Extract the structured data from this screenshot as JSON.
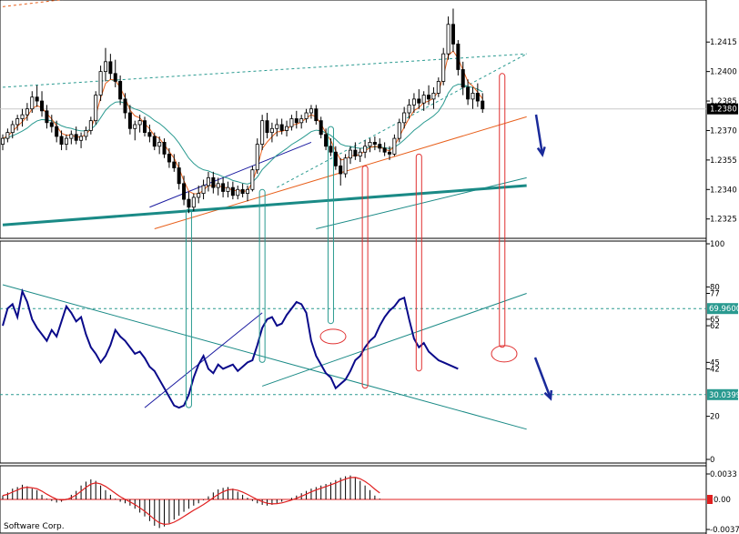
{
  "footer": {
    "text": "Software Corp."
  },
  "chart_data": [
    {
      "type": "candlestick",
      "panel": "price",
      "ylim": [
        1.2317,
        1.2435
      ],
      "yticks": [
        "1.2415",
        "1.2400",
        "1.2385",
        "1.2370",
        "1.2355",
        "1.2340",
        "1.2325"
      ],
      "current_value_label": "1.2380",
      "colors": {
        "candle": "#000000",
        "ma_fast": "#e8601c",
        "ma_slow": "#2a9a90",
        "trend_blue": "#1a1aa0",
        "trend_red": "#e8601c",
        "trend_teal": "#1a8a86"
      },
      "candles": [
        [
          1.2363,
          1.2368,
          1.236,
          1.2366
        ],
        [
          1.2366,
          1.2371,
          1.2364,
          1.2369
        ],
        [
          1.2369,
          1.2375,
          1.2366,
          1.2373
        ],
        [
          1.2373,
          1.2378,
          1.237,
          1.2376
        ],
        [
          1.2376,
          1.2381,
          1.2372,
          1.2378
        ],
        [
          1.2378,
          1.2384,
          1.2375,
          1.2381
        ],
        [
          1.2381,
          1.239,
          1.2379,
          1.2387
        ],
        [
          1.2387,
          1.2393,
          1.2382,
          1.2385
        ],
        [
          1.2385,
          1.239,
          1.2377,
          1.238
        ],
        [
          1.238,
          1.2383,
          1.2371,
          1.2374
        ],
        [
          1.2374,
          1.2378,
          1.2369,
          1.2372
        ],
        [
          1.2372,
          1.2375,
          1.2364,
          1.2367
        ],
        [
          1.2367,
          1.237,
          1.236,
          1.2363
        ],
        [
          1.2363,
          1.2368,
          1.236,
          1.2366
        ],
        [
          1.2366,
          1.237,
          1.2363,
          1.2368
        ],
        [
          1.2368,
          1.2372,
          1.2363,
          1.2365
        ],
        [
          1.2365,
          1.2369,
          1.2361,
          1.2367
        ],
        [
          1.2367,
          1.2372,
          1.2365,
          1.237
        ],
        [
          1.237,
          1.2377,
          1.2368,
          1.2375
        ],
        [
          1.2375,
          1.239,
          1.2373,
          1.2388
        ],
        [
          1.2388,
          1.2403,
          1.2385,
          1.24
        ],
        [
          1.24,
          1.2412,
          1.2395,
          1.2405
        ],
        [
          1.2405,
          1.2409,
          1.2396,
          1.2399
        ],
        [
          1.2399,
          1.2406,
          1.2392,
          1.2395
        ],
        [
          1.2395,
          1.2398,
          1.2383,
          1.2386
        ],
        [
          1.2386,
          1.2389,
          1.2376,
          1.2379
        ],
        [
          1.2379,
          1.2383,
          1.2368,
          1.2371
        ],
        [
          1.2371,
          1.2375,
          1.2365,
          1.2373
        ],
        [
          1.2373,
          1.2378,
          1.2369,
          1.2375
        ],
        [
          1.2375,
          1.2377,
          1.2367,
          1.2369
        ],
        [
          1.2369,
          1.2373,
          1.2364,
          1.2367
        ],
        [
          1.2367,
          1.2369,
          1.236,
          1.2362
        ],
        [
          1.2362,
          1.2367,
          1.2358,
          1.2364
        ],
        [
          1.2364,
          1.2366,
          1.2356,
          1.2358
        ],
        [
          1.2358,
          1.2361,
          1.2351,
          1.2354
        ],
        [
          1.2354,
          1.2358,
          1.2349,
          1.2351
        ],
        [
          1.2351,
          1.2354,
          1.234,
          1.2343
        ],
        [
          1.2343,
          1.2347,
          1.2332,
          1.2335
        ],
        [
          1.2335,
          1.2339,
          1.2328,
          1.2331
        ],
        [
          1.2331,
          1.2338,
          1.2329,
          1.2336
        ],
        [
          1.2336,
          1.2342,
          1.2333,
          1.2338
        ],
        [
          1.2338,
          1.2345,
          1.2335,
          1.2342
        ],
        [
          1.2342,
          1.2349,
          1.2339,
          1.2346
        ],
        [
          1.2346,
          1.2349,
          1.2338,
          1.2341
        ],
        [
          1.2341,
          1.2346,
          1.2337,
          1.2343
        ],
        [
          1.2343,
          1.2346,
          1.2336,
          1.2339
        ],
        [
          1.2339,
          1.2344,
          1.2336,
          1.2341
        ],
        [
          1.2341,
          1.2344,
          1.2335,
          1.2337
        ],
        [
          1.2337,
          1.2342,
          1.2335,
          1.234
        ],
        [
          1.234,
          1.2343,
          1.2336,
          1.2338
        ],
        [
          1.2338,
          1.2342,
          1.2334,
          1.234
        ],
        [
          1.234,
          1.2352,
          1.2339,
          1.235
        ],
        [
          1.235,
          1.2366,
          1.2348,
          1.2363
        ],
        [
          1.2363,
          1.2378,
          1.236,
          1.2375
        ],
        [
          1.2375,
          1.2379,
          1.2366,
          1.2369
        ],
        [
          1.2369,
          1.2374,
          1.2364,
          1.2371
        ],
        [
          1.2371,
          1.2376,
          1.2367,
          1.2373
        ],
        [
          1.2373,
          1.2376,
          1.2368,
          1.237
        ],
        [
          1.237,
          1.2375,
          1.2367,
          1.2372
        ],
        [
          1.2372,
          1.2378,
          1.237,
          1.2376
        ],
        [
          1.2376,
          1.238,
          1.2371,
          1.2374
        ],
        [
          1.2374,
          1.2378,
          1.2371,
          1.2376
        ],
        [
          1.2376,
          1.2381,
          1.2374,
          1.2379
        ],
        [
          1.2379,
          1.2383,
          1.2376,
          1.2381
        ],
        [
          1.2381,
          1.2383,
          1.2373,
          1.2375
        ],
        [
          1.2375,
          1.2377,
          1.2366,
          1.2368
        ],
        [
          1.2368,
          1.2371,
          1.236,
          1.2362
        ],
        [
          1.2362,
          1.2366,
          1.2357,
          1.2359
        ],
        [
          1.2359,
          1.2362,
          1.235,
          1.2352
        ],
        [
          1.2352,
          1.2356,
          1.2342,
          1.2348
        ],
        [
          1.2348,
          1.2358,
          1.2346,
          1.2356
        ],
        [
          1.2356,
          1.2362,
          1.2353,
          1.236
        ],
        [
          1.236,
          1.2364,
          1.2355,
          1.2357
        ],
        [
          1.2357,
          1.2361,
          1.2354,
          1.2359
        ],
        [
          1.2359,
          1.2365,
          1.2356,
          1.2362
        ],
        [
          1.2362,
          1.2366,
          1.2359,
          1.2364
        ],
        [
          1.2364,
          1.2367,
          1.236,
          1.2363
        ],
        [
          1.2363,
          1.2366,
          1.2359,
          1.2361
        ],
        [
          1.2361,
          1.2364,
          1.2357,
          1.2359
        ],
        [
          1.2359,
          1.2362,
          1.2355,
          1.2358
        ],
        [
          1.2358,
          1.2368,
          1.2357,
          1.2366
        ],
        [
          1.2366,
          1.2376,
          1.2364,
          1.2374
        ],
        [
          1.2374,
          1.2382,
          1.2371,
          1.2379
        ],
        [
          1.2379,
          1.2386,
          1.2376,
          1.2383
        ],
        [
          1.2383,
          1.2389,
          1.2379,
          1.2386
        ],
        [
          1.2386,
          1.2391,
          1.2381,
          1.2384
        ],
        [
          1.2384,
          1.239,
          1.238,
          1.2388
        ],
        [
          1.2388,
          1.2393,
          1.2383,
          1.2386
        ],
        [
          1.2386,
          1.2392,
          1.2381,
          1.2389
        ],
        [
          1.2389,
          1.2397,
          1.2387,
          1.2395
        ],
        [
          1.2395,
          1.2412,
          1.2393,
          1.2409
        ],
        [
          1.2409,
          1.2428,
          1.2406,
          1.2424
        ],
        [
          1.2424,
          1.2432,
          1.241,
          1.2414
        ],
        [
          1.2414,
          1.2416,
          1.2398,
          1.2401
        ],
        [
          1.2401,
          1.2405,
          1.2388,
          1.2392
        ],
        [
          1.2392,
          1.2396,
          1.2383,
          1.2386
        ],
        [
          1.2386,
          1.2392,
          1.2381,
          1.2389
        ],
        [
          1.2389,
          1.2394,
          1.2382,
          1.2385
        ],
        [
          1.2385,
          1.2389,
          1.2379,
          1.2381
        ]
      ],
      "overlay_lines": [
        {
          "name": "upper-dashed-red",
          "p1": [
            0,
            1.2433
          ],
          "p2": [
            65,
            1.2452
          ],
          "color": "#e8601c",
          "dash": true
        },
        {
          "name": "upper-dashed-teal",
          "p1": [
            0,
            1.2392
          ],
          "p2": [
            107,
            1.2409
          ],
          "color": "#2a9a90",
          "dash": true
        },
        {
          "name": "rising-dashed-teal",
          "p1": [
            56,
            1.2341
          ],
          "p2": [
            107,
            1.2409
          ],
          "color": "#2a9a90",
          "dash": true
        },
        {
          "name": "blue-support",
          "p1": [
            30,
            1.2331
          ],
          "p2": [
            63,
            1.2364
          ],
          "color": "#1a1aa0",
          "dash": false
        },
        {
          "name": "red-support",
          "p1": [
            31,
            1.232
          ],
          "p2": [
            107,
            1.2377
          ],
          "color": "#e8601c",
          "dash": false
        },
        {
          "name": "teal-thick",
          "p1": [
            0,
            1.2322
          ],
          "p2": [
            107,
            1.2342
          ],
          "color": "#1a8a86",
          "dash": false,
          "width": 3
        },
        {
          "name": "teal-thin",
          "p1": [
            64,
            1.232
          ],
          "p2": [
            107,
            1.2346
          ],
          "color": "#1a8a86",
          "dash": false
        }
      ]
    },
    {
      "type": "line",
      "panel": "oscillator",
      "ylim": [
        0,
        100
      ],
      "yticks": [
        "100",
        "80",
        "77",
        "69.9600",
        "65",
        "62",
        "45",
        "42",
        "30.0399",
        "20",
        "0"
      ],
      "levels": [
        69.96,
        30.04
      ],
      "series": [
        {
          "values": [
            62,
            70,
            72,
            66,
            78,
            73,
            65,
            61,
            58,
            55,
            60,
            57,
            64,
            71,
            68,
            64,
            66,
            58,
            52,
            49,
            45,
            48,
            53,
            60,
            57,
            55,
            52,
            49,
            50,
            47,
            43,
            41,
            37,
            33,
            29,
            25,
            24,
            25,
            30,
            38,
            44,
            48,
            42,
            40,
            44,
            42,
            43,
            44,
            41,
            43,
            45,
            46,
            53,
            61,
            65,
            66,
            62,
            63,
            67,
            70,
            73,
            72,
            68,
            55,
            48,
            44,
            40,
            38,
            33,
            35,
            37,
            41,
            46,
            48,
            52,
            55,
            57,
            62,
            66,
            69,
            71,
            74,
            75,
            65,
            56,
            52,
            54,
            50,
            48,
            46,
            45,
            44,
            43,
            42
          ]
        }
      ],
      "overlay_lines": [
        {
          "name": "falling-teal",
          "p1": [
            0,
            81
          ],
          "p2": [
            107,
            14
          ],
          "color": "#1a8a86"
        },
        {
          "name": "rising-blue",
          "p1": [
            29,
            24
          ],
          "p2": [
            53,
            68
          ],
          "color": "#1a1aa0"
        },
        {
          "name": "rising-teal",
          "p1": [
            53,
            34
          ],
          "p2": [
            107,
            77
          ],
          "color": "#1a8a86"
        }
      ]
    },
    {
      "type": "histogram",
      "panel": "macd",
      "ylim": [
        -0.004,
        0.004
      ],
      "yticks": [
        "0.0033",
        "0.00",
        "-0.0037"
      ],
      "values": [
        0.0005,
        0.0009,
        0.0014,
        0.0016,
        0.0019,
        0.0017,
        0.0014,
        0.0012,
        0.0006,
        0.0001,
        -0.0002,
        -0.0004,
        -0.0003,
        0.0001,
        0.0006,
        0.0011,
        0.0018,
        0.0023,
        0.0026,
        0.0024,
        0.0018,
        0.0012,
        0.0006,
        0.0001,
        -0.0003,
        -0.0005,
        -0.0008,
        -0.0012,
        -0.0017,
        -0.0022,
        -0.0028,
        -0.0034,
        -0.0037,
        -0.0035,
        -0.0031,
        -0.0026,
        -0.0021,
        -0.0016,
        -0.0012,
        -0.0008,
        -0.0005,
        -0.0001,
        0.0004,
        0.0009,
        0.0013,
        0.0015,
        0.0016,
        0.0014,
        0.001,
        0.0006,
        0.0002,
        -0.0002,
        -0.0005,
        -0.0007,
        -0.0008,
        -0.0007,
        -0.0005,
        -0.0003,
        0.0,
        0.0002,
        0.0005,
        0.0008,
        0.0011,
        0.0014,
        0.0016,
        0.0018,
        0.002,
        0.0022,
        0.0025,
        0.0028,
        0.003,
        0.0031,
        0.0029,
        0.0024,
        0.0018,
        0.0012,
        0.0005,
        0.0001
      ],
      "signal_color": "#e02020",
      "hist_color": "#000000"
    }
  ]
}
